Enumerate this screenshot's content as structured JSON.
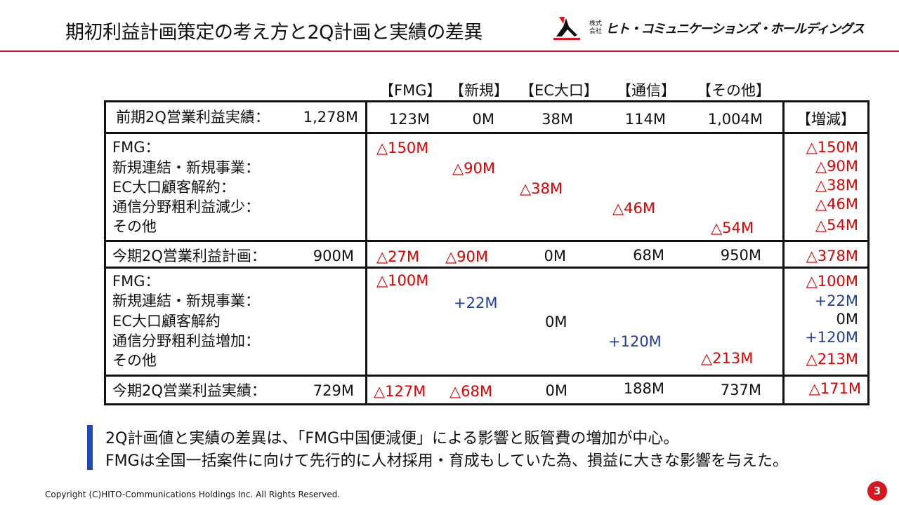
{
  "header": {
    "title": "期初利益計画策定の考え方と2Q計画と実績の差異",
    "logo_kabu": "株式会社",
    "company_name": "ヒト・コミュニケーションズ・ホールディングス"
  },
  "table": {
    "columns": [
      "【FMG】",
      "【新規】",
      "【EC大口】",
      "【通信】",
      "【その他】"
    ],
    "diff_header": "【増減】",
    "prev_actual": {
      "label": "前期2Q営業利益実績：",
      "total": "1,278M",
      "values": [
        "123M",
        "0M",
        "38M",
        "114M",
        "1,004M"
      ]
    },
    "plan_factors": {
      "labels": [
        "FMG：",
        "新規連結・新規事業：",
        "EC大口顧客解約：",
        "通信分野粗利益減少：",
        "その他"
      ],
      "values": [
        "△150M",
        "△90M",
        "△38M",
        "△46M",
        "△54M"
      ],
      "diffs": [
        "△150M",
        "△90M",
        "△38M",
        "△46M",
        "△54M"
      ]
    },
    "plan": {
      "label": "今期2Q営業利益計画：",
      "total": "900M",
      "values": [
        "△27M",
        "△90M",
        "0M",
        "68M",
        "950M"
      ],
      "diff": "△378M"
    },
    "actual_factors": {
      "labels": [
        "FMG：",
        "新規連結・新規事業：",
        "EC大口顧客解約",
        "通信分野粗利益増加：",
        "その他"
      ],
      "values": [
        "△100M",
        "+22M",
        "0M",
        "+120M",
        "△213M"
      ],
      "diffs": [
        "△100M",
        "+22M",
        "0M",
        "+120M",
        "△213M"
      ]
    },
    "actual": {
      "label": "今期2Q営業利益実績：",
      "total": "729M",
      "values": [
        "△127M",
        "△68M",
        "0M",
        "188M",
        "737M"
      ],
      "diff": "△171M"
    }
  },
  "notes": [
    "2Q計画値と実績の差異は、「FMG中国便減便」による影響と販管費の増加が中心。",
    "FMGは全国一括案件に向けて先行的に人材採用・育成もしていた為、損益に大きな影響を与えた。"
  ],
  "footer": {
    "copyright": "Copyright (C)HITO-Communications Holdings Inc. All Rights Reserved.",
    "page": "3"
  },
  "colors": {
    "accent_red": "#c8102e",
    "negative": "#e00000",
    "positive": "#1f3f9a",
    "note_bar": "#1f48b8"
  }
}
